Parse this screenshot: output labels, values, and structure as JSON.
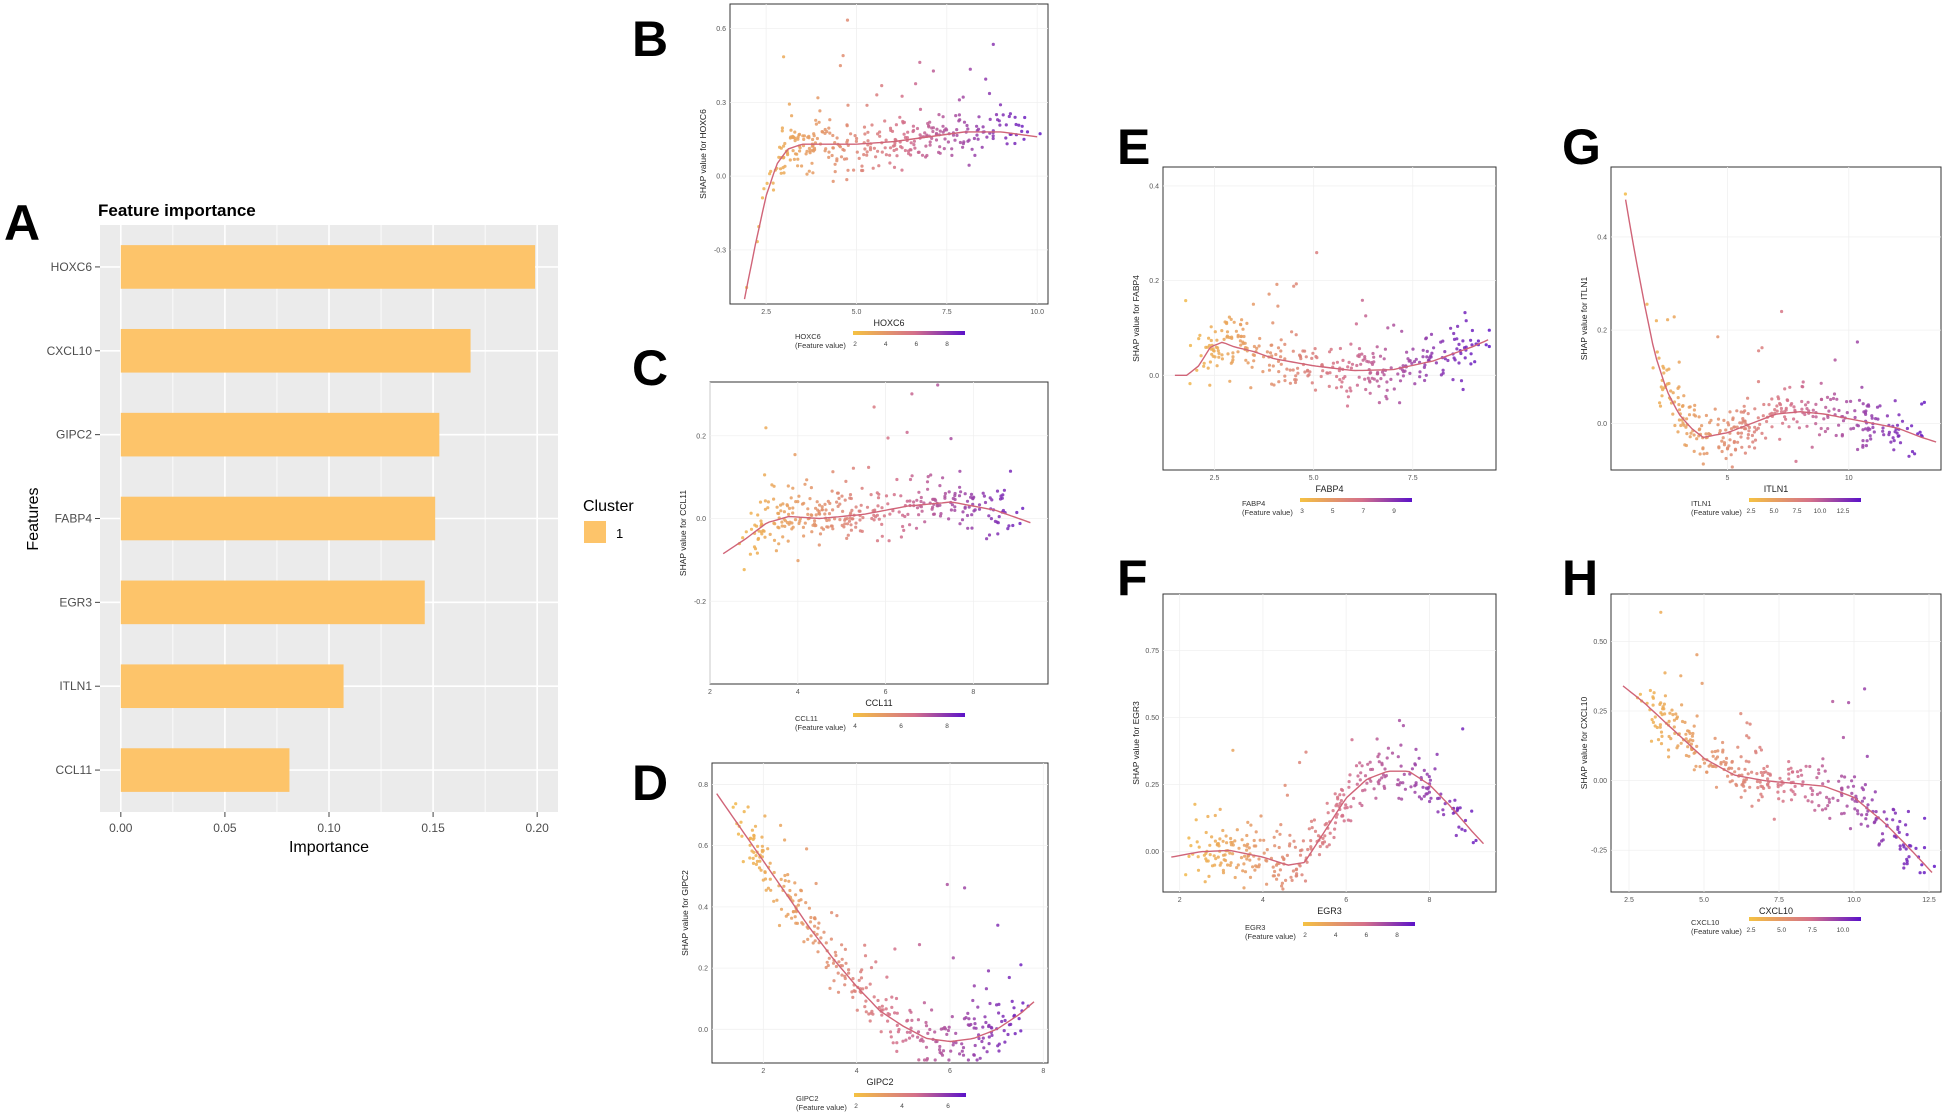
{
  "colors": {
    "bar": "#FDC46A",
    "panel_bg": "#EBEBEB",
    "grid": "#FFFFFF",
    "smooth": "#D06478",
    "grad_low": "#F5C242",
    "grad_mid": "#D4708A",
    "grad_high": "#5B12C9"
  },
  "chart_data": [
    {
      "panel": "A",
      "type": "bar",
      "orientation": "horizontal",
      "title": "Feature importance",
      "xlabel": "Importance",
      "ylabel": "Features",
      "categories": [
        "HOXC6",
        "CXCL10",
        "GIPC2",
        "FABP4",
        "EGR3",
        "ITLN1",
        "CCL11"
      ],
      "values": [
        0.199,
        0.168,
        0.153,
        0.151,
        0.146,
        0.107,
        0.081
      ],
      "xlim": [
        -0.01,
        0.21
      ],
      "xticks": [
        "0.00",
        "0.05",
        "0.10",
        "0.15",
        "0.20"
      ],
      "xtick_values": [
        0,
        0.05,
        0.1,
        0.15,
        0.2
      ],
      "legend": {
        "title": "Cluster",
        "entries": [
          "1"
        ],
        "position": "right"
      }
    },
    {
      "panel": "B",
      "type": "scatter",
      "feature": "HOXC6",
      "xlabel": "HOXC6",
      "ylabel": "SHAP value for HOXC6",
      "xlim": [
        1.5,
        10.3
      ],
      "ylim": [
        -0.52,
        0.7
      ],
      "xticks": [
        "2.5",
        "5.0",
        "7.5",
        "10.0"
      ],
      "xtick_values": [
        2.5,
        5,
        7.5,
        10
      ],
      "yticks": [
        "-0.3",
        "0.0",
        "0.3",
        "0.6"
      ],
      "ytick_values": [
        -0.3,
        0,
        0.3,
        0.6
      ],
      "smooth_x": [
        1.9,
        2.2,
        2.5,
        2.8,
        3.1,
        3.5,
        4.0,
        5.0,
        6.0,
        7.0,
        8.0,
        9.0,
        10.0
      ],
      "smooth_y": [
        -0.5,
        -0.28,
        -0.08,
        0.05,
        0.11,
        0.13,
        0.13,
        0.13,
        0.14,
        0.16,
        0.18,
        0.18,
        0.16
      ],
      "legend_title": "HOXC6",
      "legend_subtitle": "(Feature value)",
      "legend_ticks": [
        "2",
        "4",
        "6",
        "8"
      ]
    },
    {
      "panel": "C",
      "type": "scatter",
      "feature": "CCL11",
      "xlabel": "CCL11",
      "ylabel": "SHAP value for CCL11",
      "xlim": [
        2.0,
        9.7
      ],
      "ylim": [
        -0.4,
        0.33
      ],
      "xticks": [
        "2",
        "4",
        "6",
        "8"
      ],
      "xtick_values": [
        2,
        4,
        6,
        8
      ],
      "yticks": [
        "-0.2",
        "0.0",
        "0.2"
      ],
      "ytick_values": [
        -0.2,
        0,
        0.2
      ],
      "smooth_x": [
        2.3,
        2.8,
        3.3,
        3.8,
        4.5,
        5.5,
        6.5,
        7.5,
        8.5,
        9.3
      ],
      "smooth_y": [
        -0.085,
        -0.05,
        -0.01,
        0.005,
        0.0,
        0.01,
        0.03,
        0.04,
        0.02,
        -0.01
      ],
      "legend_title": "CCL11",
      "legend_subtitle": "(Feature value)",
      "legend_ticks": [
        "4",
        "6",
        "8"
      ]
    },
    {
      "panel": "D",
      "type": "scatter",
      "feature": "GIPC2",
      "xlabel": "GIPC2",
      "ylabel": "SHAP value for GIPC2",
      "xlim": [
        0.9,
        8.1
      ],
      "ylim": [
        -0.11,
        0.87
      ],
      "xticks": [
        "2",
        "4",
        "6",
        "8"
      ],
      "xtick_values": [
        2,
        4,
        6,
        8
      ],
      "yticks": [
        "0.0",
        "0.2",
        "0.4",
        "0.6",
        "0.8"
      ],
      "ytick_values": [
        0,
        0.2,
        0.4,
        0.6,
        0.8
      ],
      "smooth_x": [
        1.0,
        1.5,
        2.0,
        2.5,
        3.0,
        3.5,
        4.0,
        4.5,
        5.0,
        5.5,
        6.0,
        6.5,
        7.0,
        7.5,
        7.8
      ],
      "smooth_y": [
        0.77,
        0.66,
        0.55,
        0.44,
        0.33,
        0.23,
        0.14,
        0.06,
        0.01,
        -0.03,
        -0.04,
        -0.03,
        0.0,
        0.05,
        0.09
      ],
      "legend_title": "GIPC2",
      "legend_subtitle": "(Feature value)",
      "legend_ticks": [
        "2",
        "4",
        "6"
      ]
    },
    {
      "panel": "E",
      "type": "scatter",
      "feature": "FABP4",
      "xlabel": "FABP4",
      "ylabel": "SHAP value for FABP4",
      "xlim": [
        1.2,
        9.6
      ],
      "ylim": [
        -0.2,
        0.44
      ],
      "xticks": [
        "2.5",
        "5.0",
        "7.5"
      ],
      "xtick_values": [
        2.5,
        5,
        7.5
      ],
      "yticks": [
        "0.0",
        "0.2",
        "0.4"
      ],
      "ytick_values": [
        0,
        0.2,
        0.4
      ],
      "smooth_x": [
        1.5,
        1.8,
        2.1,
        2.4,
        2.7,
        3.0,
        3.5,
        4.0,
        5.0,
        6.0,
        7.0,
        8.0,
        9.0,
        9.4
      ],
      "smooth_y": [
        0.0,
        0.0,
        0.02,
        0.06,
        0.07,
        0.06,
        0.05,
        0.035,
        0.02,
        0.01,
        0.012,
        0.03,
        0.06,
        0.075
      ],
      "legend_title": "FABP4",
      "legend_subtitle": "(Feature value)",
      "legend_ticks": [
        "3",
        "5",
        "7",
        "9"
      ]
    },
    {
      "panel": "F",
      "type": "scatter",
      "feature": "EGR3",
      "xlabel": "EGR3",
      "ylabel": "SHAP value for EGR3",
      "xlim": [
        1.6,
        9.6
      ],
      "ylim": [
        -0.15,
        0.96
      ],
      "xticks": [
        "2",
        "4",
        "6",
        "8"
      ],
      "xtick_values": [
        2,
        4,
        6,
        8
      ],
      "yticks": [
        "0.00",
        "0.25",
        "0.50",
        "0.75"
      ],
      "ytick_values": [
        0,
        0.25,
        0.5,
        0.75
      ],
      "smooth_x": [
        1.8,
        2.5,
        3.2,
        4.0,
        4.6,
        5.0,
        5.5,
        6.0,
        6.5,
        7.0,
        7.5,
        8.0,
        8.5,
        9.0,
        9.3
      ],
      "smooth_y": [
        -0.02,
        0.0,
        0.005,
        -0.02,
        -0.05,
        -0.04,
        0.08,
        0.2,
        0.27,
        0.3,
        0.3,
        0.25,
        0.17,
        0.08,
        0.03
      ],
      "legend_title": "EGR3",
      "legend_subtitle": "(Feature value)",
      "legend_ticks": [
        "2",
        "4",
        "6",
        "8"
      ]
    },
    {
      "panel": "G",
      "type": "scatter",
      "feature": "ITLN1",
      "xlabel": "ITLN1",
      "ylabel": "SHAP value for ITLN1",
      "xlim": [
        0.2,
        13.8
      ],
      "ylim": [
        -0.1,
        0.55
      ],
      "xticks": [
        "5",
        "10"
      ],
      "xtick_values": [
        5,
        10
      ],
      "yticks": [
        "0.0",
        "0.2",
        "0.4"
      ],
      "ytick_values": [
        0,
        0.2,
        0.4
      ],
      "smooth_x": [
        0.8,
        1.2,
        1.6,
        2.0,
        2.5,
        3.0,
        3.5,
        4.0,
        5.0,
        6.0,
        7.0,
        8.0,
        9.0,
        10.0,
        11.0,
        12.0,
        13.0,
        13.6
      ],
      "smooth_y": [
        0.48,
        0.36,
        0.25,
        0.15,
        0.07,
        0.02,
        -0.01,
        -0.03,
        -0.02,
        0.0,
        0.02,
        0.025,
        0.02,
        0.01,
        0.0,
        -0.01,
        -0.03,
        -0.04
      ],
      "legend_title": "ITLN1",
      "legend_subtitle": "(Feature value)",
      "legend_ticks": [
        "2.5",
        "5.0",
        "7.5",
        "10.0",
        "12.5"
      ]
    },
    {
      "panel": "H",
      "type": "scatter",
      "feature": "CXCL10",
      "xlabel": "CXCL10",
      "ylabel": "SHAP value for CXCL10",
      "xlim": [
        1.9,
        12.9
      ],
      "ylim": [
        -0.4,
        0.67
      ],
      "xticks": [
        "2.5",
        "5.0",
        "7.5",
        "10.0",
        "12.5"
      ],
      "xtick_values": [
        2.5,
        5,
        7.5,
        10,
        12.5
      ],
      "yticks": [
        "-0.25",
        "0.00",
        "0.25",
        "0.50"
      ],
      "ytick_values": [
        -0.25,
        0,
        0.25,
        0.5
      ],
      "smooth_x": [
        2.3,
        3.0,
        4.0,
        5.0,
        6.0,
        7.0,
        8.0,
        9.0,
        10.0,
        11.0,
        12.0,
        12.6
      ],
      "smooth_y": [
        0.34,
        0.28,
        0.18,
        0.08,
        0.02,
        0.0,
        -0.01,
        -0.02,
        -0.06,
        -0.15,
        -0.26,
        -0.33
      ],
      "legend_title": "CXCL10",
      "legend_subtitle": "(Feature value)",
      "legend_ticks": [
        "2.5",
        "5.0",
        "7.5",
        "10.0"
      ]
    }
  ]
}
